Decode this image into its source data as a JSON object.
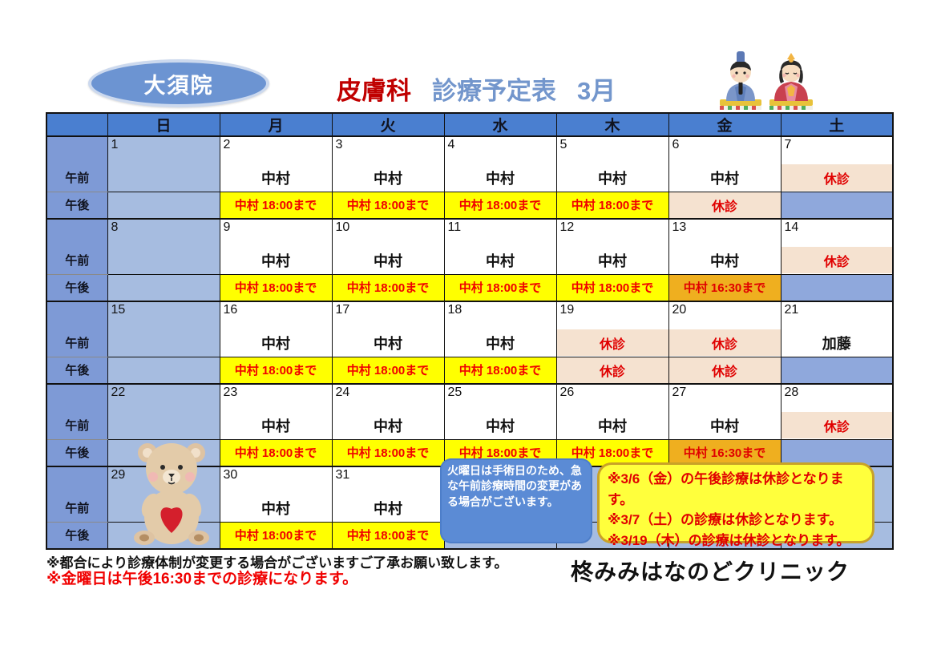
{
  "header": {
    "badge": "大須院",
    "title": {
      "department": "皮膚科",
      "schedule": "診療予定表",
      "month": "3月"
    },
    "icons": {
      "dolls": "hina-dolls",
      "bear": "teddy-bear-with-heart"
    }
  },
  "colors": {
    "header_blue": "#4a7fd0",
    "label_blue": "#7e9ad6",
    "sunday_blue": "#a6bce0",
    "blank_blue": "#8fa8dc",
    "yellow": "#ffff00",
    "orange": "#efaf1f",
    "closed_pink": "#f5e2d0",
    "alert_red": "#f00000",
    "title_red": "#c00000",
    "title_blue": "#7396cc"
  },
  "calendar": {
    "weekday_headers": [
      "日",
      "月",
      "火",
      "水",
      "木",
      "金",
      "土"
    ],
    "time_labels": {
      "morning": "午前",
      "afternoon": "午後"
    },
    "weeks": [
      {
        "days": [
          {
            "date": "1",
            "am": {
              "text": "",
              "style": "sun"
            },
            "pm": {
              "text": "",
              "style": "sun"
            }
          },
          {
            "date": "2",
            "am": {
              "text": "中村",
              "style": "white"
            },
            "pm": {
              "text": "中村 18:00まで",
              "style": "yellow"
            }
          },
          {
            "date": "3",
            "am": {
              "text": "中村",
              "style": "white"
            },
            "pm": {
              "text": "中村 18:00まで",
              "style": "yellow"
            }
          },
          {
            "date": "4",
            "am": {
              "text": "中村",
              "style": "white"
            },
            "pm": {
              "text": "中村 18:00まで",
              "style": "yellow"
            }
          },
          {
            "date": "5",
            "am": {
              "text": "中村",
              "style": "white"
            },
            "pm": {
              "text": "中村 18:00まで",
              "style": "yellow"
            }
          },
          {
            "date": "6",
            "am": {
              "text": "中村",
              "style": "white"
            },
            "pm": {
              "text": "休診",
              "style": "closed"
            }
          },
          {
            "date": "7",
            "am": {
              "text": "休診",
              "style": "closed"
            },
            "pm": {
              "text": "",
              "style": "blank"
            }
          }
        ]
      },
      {
        "days": [
          {
            "date": "8",
            "am": {
              "text": "",
              "style": "sun"
            },
            "pm": {
              "text": "",
              "style": "sun"
            }
          },
          {
            "date": "9",
            "am": {
              "text": "中村",
              "style": "white"
            },
            "pm": {
              "text": "中村 18:00まで",
              "style": "yellow"
            }
          },
          {
            "date": "10",
            "am": {
              "text": "中村",
              "style": "white"
            },
            "pm": {
              "text": "中村 18:00まで",
              "style": "yellow"
            }
          },
          {
            "date": "11",
            "am": {
              "text": "中村",
              "style": "white"
            },
            "pm": {
              "text": "中村 18:00まで",
              "style": "yellow"
            }
          },
          {
            "date": "12",
            "am": {
              "text": "中村",
              "style": "white"
            },
            "pm": {
              "text": "中村 18:00まで",
              "style": "yellow"
            }
          },
          {
            "date": "13",
            "am": {
              "text": "中村",
              "style": "white"
            },
            "pm": {
              "text": "中村 16:30まで",
              "style": "orange"
            }
          },
          {
            "date": "14",
            "am": {
              "text": "休診",
              "style": "closed"
            },
            "pm": {
              "text": "",
              "style": "blank"
            }
          }
        ]
      },
      {
        "days": [
          {
            "date": "15",
            "am": {
              "text": "",
              "style": "sun"
            },
            "pm": {
              "text": "",
              "style": "sun"
            }
          },
          {
            "date": "16",
            "am": {
              "text": "中村",
              "style": "white"
            },
            "pm": {
              "text": "中村 18:00まで",
              "style": "yellow"
            }
          },
          {
            "date": "17",
            "am": {
              "text": "中村",
              "style": "white"
            },
            "pm": {
              "text": "中村 18:00まで",
              "style": "yellow"
            }
          },
          {
            "date": "18",
            "am": {
              "text": "中村",
              "style": "white"
            },
            "pm": {
              "text": "中村 18:00まで",
              "style": "yellow"
            }
          },
          {
            "date": "19",
            "am": {
              "text": "休診",
              "style": "closed"
            },
            "pm": {
              "text": "休診",
              "style": "closed"
            }
          },
          {
            "date": "20",
            "am": {
              "text": "休診",
              "style": "closed"
            },
            "pm": {
              "text": "休診",
              "style": "closed"
            }
          },
          {
            "date": "21",
            "am": {
              "text": "加藤",
              "style": "white"
            },
            "pm": {
              "text": "",
              "style": "blank"
            }
          }
        ]
      },
      {
        "days": [
          {
            "date": "22",
            "am": {
              "text": "",
              "style": "sun"
            },
            "pm": {
              "text": "",
              "style": "sun"
            }
          },
          {
            "date": "23",
            "am": {
              "text": "中村",
              "style": "white"
            },
            "pm": {
              "text": "中村 18:00まで",
              "style": "yellow"
            }
          },
          {
            "date": "24",
            "am": {
              "text": "中村",
              "style": "white"
            },
            "pm": {
              "text": "中村 18:00まで",
              "style": "yellow"
            }
          },
          {
            "date": "25",
            "am": {
              "text": "中村",
              "style": "white"
            },
            "pm": {
              "text": "中村 18:00まで",
              "style": "yellow"
            }
          },
          {
            "date": "26",
            "am": {
              "text": "中村",
              "style": "white"
            },
            "pm": {
              "text": "中村 18:00まで",
              "style": "yellow"
            }
          },
          {
            "date": "27",
            "am": {
              "text": "中村",
              "style": "white"
            },
            "pm": {
              "text": "中村 16:30まで",
              "style": "orange"
            }
          },
          {
            "date": "28",
            "am": {
              "text": "休診",
              "style": "closed"
            },
            "pm": {
              "text": "",
              "style": "blank"
            }
          }
        ]
      },
      {
        "days": [
          {
            "date": "29",
            "am": {
              "text": "",
              "style": "sun"
            },
            "pm": {
              "text": "",
              "style": "sun"
            }
          },
          {
            "date": "30",
            "am": {
              "text": "中村",
              "style": "white"
            },
            "pm": {
              "text": "中村 18:00まで",
              "style": "yellow"
            }
          },
          {
            "date": "31",
            "am": {
              "text": "中村",
              "style": "white"
            },
            "pm": {
              "text": "中村 18:00まで",
              "style": "yellow"
            }
          },
          {
            "date": "",
            "am": {
              "text": "",
              "style": "sun"
            },
            "pm": {
              "text": "",
              "style": "sun"
            }
          },
          {
            "date": "",
            "am": {
              "text": "",
              "style": "sun"
            },
            "pm": {
              "text": "",
              "style": "sun"
            }
          },
          {
            "date": "",
            "am": {
              "text": "",
              "style": "sun"
            },
            "pm": {
              "text": "",
              "style": "sun"
            }
          },
          {
            "date": "",
            "am": {
              "text": "",
              "style": "sun"
            },
            "pm": {
              "text": "",
              "style": "sun"
            }
          }
        ]
      }
    ]
  },
  "notes": {
    "surgery_note": "火曜日は手術日のため、急な午前診療時間の変更がある場合がございます。",
    "closure_notes": [
      "※3/6（金）の午後診療は休診となります。",
      "※3/7（土）の診療は休診となります。",
      "※3/19（木）の診療は休診となります。"
    ],
    "footer_black": "※都合により診療体制が変更する場合がございますご了承お願い致します。",
    "footer_red": "※金曜日は午後16:30までの診療になります。",
    "clinic_name": "柊みみはなのどクリニック"
  }
}
